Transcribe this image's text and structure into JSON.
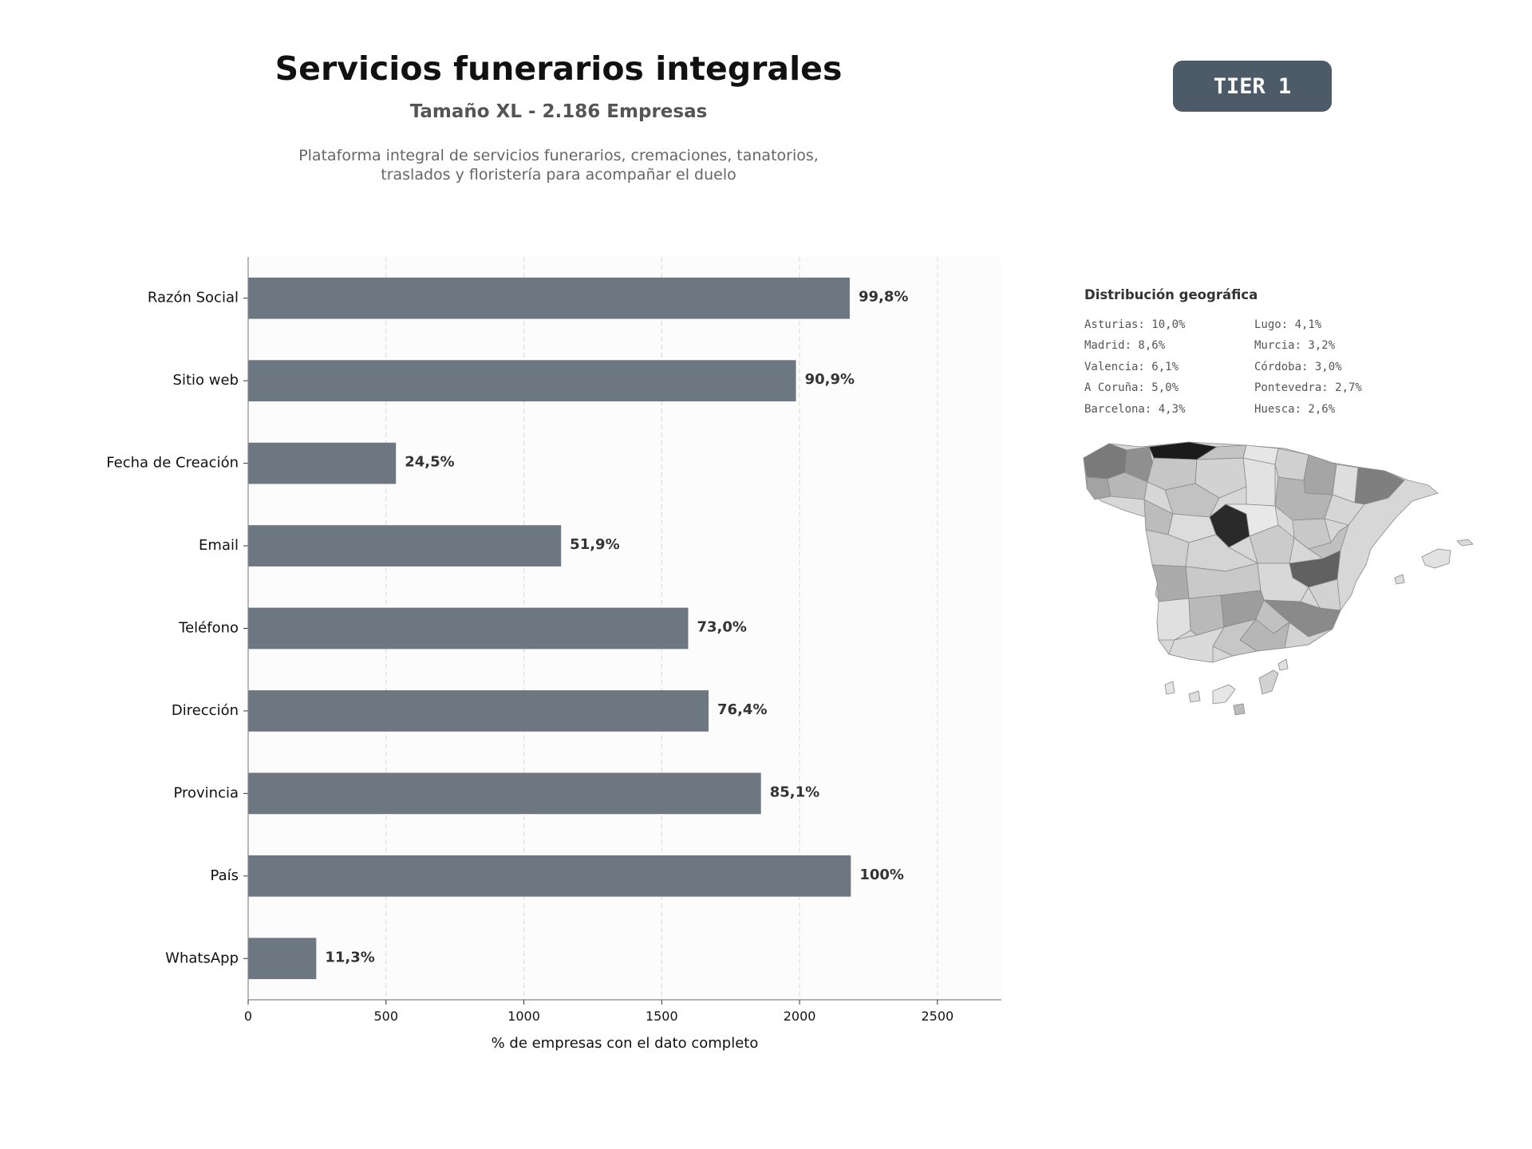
{
  "header": {
    "title": "Servicios funerarios integrales",
    "subtitle": "Tamaño XL - 2.186 Empresas",
    "description_line1": "Plataforma integral de servicios funerarios, cremaciones, tanatorios,",
    "description_line2": "traslados y floristería para acompañar el duelo",
    "tier_badge": "TIER 1"
  },
  "chart_data": {
    "type": "bar",
    "orientation": "horizontal",
    "categories": [
      "Razón Social",
      "Sitio web",
      "Fecha de Creación",
      "Email",
      "Teléfono",
      "Dirección",
      "Provincia",
      "País",
      "WhatsApp"
    ],
    "values": [
      2182,
      1987,
      536,
      1135,
      1596,
      1670,
      1860,
      2186,
      247
    ],
    "value_labels": [
      "99,8%",
      "90,9%",
      "24,5%",
      "51,9%",
      "73,0%",
      "76,4%",
      "85,1%",
      "100%",
      "11,3%"
    ],
    "xlabel": "% de empresas con el dato completo",
    "ylabel": "",
    "xlim": [
      0,
      2732
    ],
    "xticks": [
      0,
      500,
      1000,
      1500,
      2000,
      2500
    ],
    "grid": "x, dashed",
    "bar_color": "#6d7781"
  },
  "geo": {
    "title": "Distribución geográfica",
    "items": [
      "Asturias: 10,0%",
      "Lugo: 4,1%",
      "Madrid: 8,6%",
      "Murcia: 3,2%",
      "Valencia: 6,1%",
      "Córdoba: 3,0%",
      "A Coruña: 5,0%",
      "Pontevedra: 2,7%",
      "Barcelona: 4,3%",
      "Huesca: 2,6%"
    ]
  }
}
